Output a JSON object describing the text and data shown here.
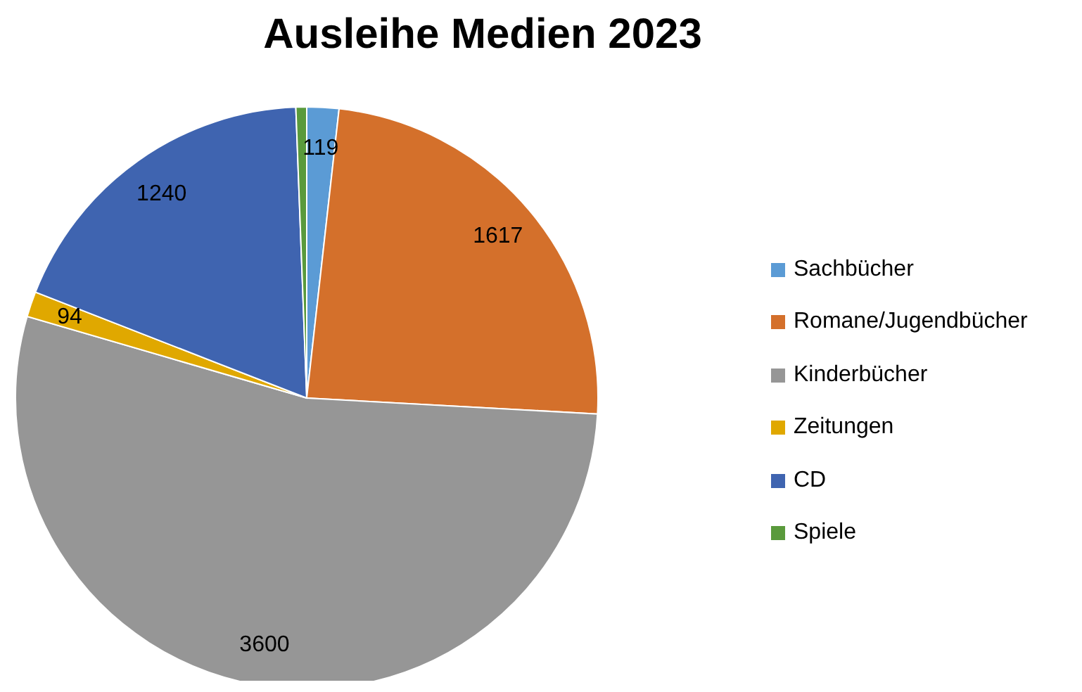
{
  "chart_data": {
    "type": "pie",
    "title": "Ausleihe Medien 2023",
    "categories": [
      "Sachbücher",
      "Romane/Jugendbücher",
      "Kinderbücher",
      "Zeitungen",
      "CD",
      "Spiele"
    ],
    "values": [
      119,
      1617,
      3600,
      94,
      1240,
      40
    ],
    "value_labels": [
      "119",
      "1617",
      "3600",
      "94",
      "1240",
      null
    ],
    "colors": [
      "#5b9bd5",
      "#d4702b",
      "#969696",
      "#e0a800",
      "#3f64b0",
      "#5a9a3c"
    ],
    "legend": "right"
  }
}
